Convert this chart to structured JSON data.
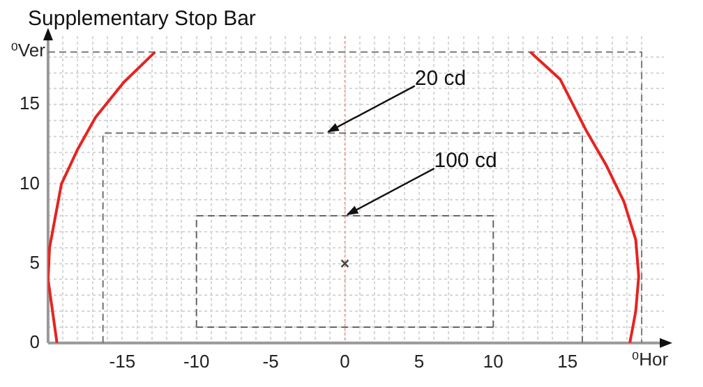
{
  "chart_data": {
    "type": "line",
    "title": "Supplementary Stop Bar",
    "xlabel": "⁰Hor",
    "ylabel": "⁰Ver",
    "xlim": [
      -20,
      21.5
    ],
    "ylim": [
      0,
      19.3
    ],
    "xticks": [
      {
        "value": -20,
        "label": null
      },
      {
        "value": -19,
        "label": null
      },
      {
        "value": -18,
        "label": null
      },
      {
        "value": -17,
        "label": null
      },
      {
        "value": -16,
        "label": null
      },
      -15,
      {
        "value": -14,
        "label": null
      },
      {
        "value": -13,
        "label": null
      },
      {
        "value": -12,
        "label": null
      },
      {
        "value": -11,
        "label": null
      },
      -10,
      {
        "value": -9,
        "label": null
      },
      {
        "value": -8,
        "label": null
      },
      {
        "value": -7,
        "label": null
      },
      {
        "value": -6,
        "label": null
      },
      -5,
      {
        "value": -4,
        "label": null
      },
      {
        "value": -3,
        "label": null
      },
      {
        "value": -2,
        "label": null
      },
      {
        "value": -1,
        "label": null
      },
      0,
      {
        "value": 1,
        "label": null
      },
      {
        "value": 2,
        "label": null
      },
      {
        "value": 3,
        "label": null
      },
      {
        "value": 4,
        "label": null
      },
      5,
      {
        "value": 6,
        "label": null
      },
      {
        "value": 7,
        "label": null
      },
      {
        "value": 8,
        "label": null
      },
      {
        "value": 9,
        "label": null
      },
      10,
      {
        "value": 11,
        "label": null
      },
      {
        "value": 12,
        "label": null
      },
      {
        "value": 13,
        "label": null
      },
      {
        "value": 14,
        "label": null
      },
      15,
      {
        "value": 16,
        "label": null
      },
      {
        "value": 17,
        "label": null
      },
      {
        "value": 18,
        "label": null
      },
      {
        "value": 19,
        "label": null
      },
      {
        "value": 20,
        "label": null
      }
    ],
    "yticks": [
      0,
      {
        "value": 1,
        "label": null
      },
      {
        "value": 2,
        "label": null
      },
      {
        "value": 3,
        "label": null
      },
      {
        "value": 4,
        "label": null
      },
      5,
      {
        "value": 6,
        "label": null
      },
      {
        "value": 7,
        "label": null
      },
      {
        "value": 8,
        "label": null
      },
      {
        "value": 9,
        "label": null
      },
      10,
      {
        "value": 11,
        "label": null
      },
      {
        "value": 12,
        "label": null
      },
      {
        "value": 13,
        "label": null
      },
      {
        "value": 14,
        "label": null
      },
      15,
      {
        "value": 16,
        "label": null
      },
      {
        "value": 17,
        "label": null
      },
      {
        "value": 18,
        "label": null
      }
    ],
    "grid": true,
    "ref_lines": [
      {
        "axis": "x",
        "value": 0,
        "color": "#f0a0a0",
        "line_style": "dotted"
      }
    ],
    "series": [
      {
        "type": "line",
        "color": "#e52421",
        "marker": "none",
        "line_style": "solid",
        "x": [
          -19.4,
          -20,
          -19.9,
          -19.5,
          -19.1,
          -18,
          -16.8,
          -14.9,
          -12.8,
          null,
          12.5,
          14.5,
          16.3,
          17.6,
          18.8,
          19.6,
          19.8,
          19.6,
          19.2
        ],
        "values": [
          0,
          4,
          6,
          8,
          10,
          12.2,
          14.2,
          16.4,
          18.3,
          null,
          18.3,
          16.6,
          13.3,
          11.2,
          8.9,
          6.5,
          4.2,
          2,
          0
        ]
      },
      {
        "type": "line",
        "color": "#7a7a7a",
        "marker": "none",
        "line_style": "dashed",
        "x": [
          -20,
          20,
          20
        ],
        "values": [
          18.3,
          18.3,
          0
        ]
      },
      {
        "type": "line",
        "color": "#707070",
        "marker": "none",
        "line_style": "dashed",
        "x": [
          -16.3,
          -16.3,
          16,
          16
        ],
        "values": [
          0,
          13.2,
          13.2,
          0
        ]
      },
      {
        "type": "line",
        "color": "#666666",
        "marker": "none",
        "line_style": "dashed",
        "x": [
          -10,
          -10,
          10,
          10,
          null,
          10,
          -10
        ],
        "values": [
          1,
          8,
          8,
          1,
          null,
          1,
          1
        ]
      },
      {
        "type": "scatter",
        "color": "#444444",
        "marker": "cross",
        "x": [
          0
        ],
        "values": [
          5
        ]
      }
    ],
    "annotations": [
      {
        "text": "20 cd",
        "x": -1.3,
        "y": 13.2
      },
      {
        "text": "100 cd",
        "x": 0,
        "y": 8
      }
    ]
  }
}
